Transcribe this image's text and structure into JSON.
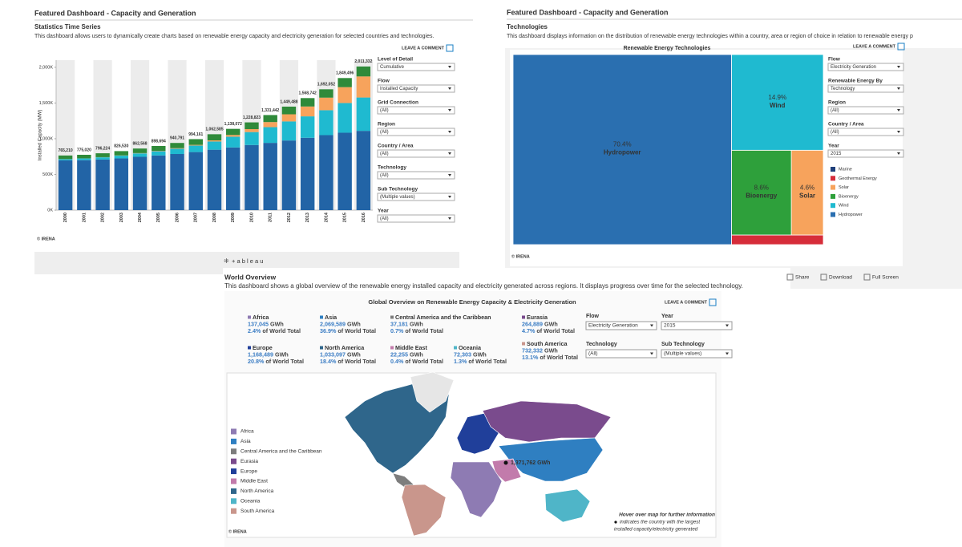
{
  "left_dashboard": {
    "header": "Featured Dashboard - Capacity and Generation",
    "title": "Statistics Time Series",
    "description": "This dashboard allows users to dynamically create charts based on renewable energy capacity and electricity generation for selected countries and technologies.",
    "comment": "LEAVE A COMMENT",
    "credit": "© IRENA",
    "brand": "+ a b l e a u",
    "filters": [
      {
        "label": "Level of Detail",
        "value": "Cumulative"
      },
      {
        "label": "Flow",
        "value": "Installed Capacity"
      },
      {
        "label": "Grid Connection",
        "value": "(All)"
      },
      {
        "label": "Region",
        "value": "(All)"
      },
      {
        "label": "Country / Area",
        "value": "(All)"
      },
      {
        "label": "Technology",
        "value": "(All)"
      },
      {
        "label": "Sub Technology",
        "value": "(Multiple values)"
      },
      {
        "label": "Year",
        "value": "(All)"
      }
    ]
  },
  "right_dashboard": {
    "header": "Featured Dashboard - Capacity and Generation",
    "title": "Technologies",
    "description": "This dashboard displays information on the distribution of renewable energy technologies within a country, area or region of choice in relation to renewable energy p",
    "comment": "LEAVE A COMMENT",
    "credit": "© IRENA",
    "filters": [
      {
        "label": "Flow",
        "value": "Electricity Generation"
      },
      {
        "label": "Renewable Energy By",
        "value": "Technology"
      },
      {
        "label": "Region",
        "value": "(All)"
      },
      {
        "label": "Country / Area",
        "value": "(All)"
      },
      {
        "label": "Year",
        "value": "2015"
      }
    ],
    "toolbar": [
      "Share",
      "Download",
      "Full Screen"
    ]
  },
  "bottom_dashboard": {
    "title": "World Overview",
    "description": "This dashboard shows a global overview of the renewable energy installed capacity and electricity generated across regions. It displays progress over time for the selected technology.",
    "map_title": "Global Overview on Renewable Energy Capacity & Electricity Generation",
    "comment": "LEAVE A COMMENT",
    "regions": [
      {
        "name": "Africa",
        "value": "137,045",
        "unit": "GWh",
        "share": "2.4%",
        "share_text": "of World Total"
      },
      {
        "name": "Asia",
        "value": "2,069,589",
        "unit": "GWh",
        "share": "36.9%",
        "share_text": "of World Total"
      },
      {
        "name": "Central America and the Caribbean",
        "value": "37,181",
        "unit": "GWh",
        "share": "0.7%",
        "share_text": "of World Total"
      },
      {
        "name": "Eurasia",
        "value": "264,889",
        "unit": "GWh",
        "share": "4.7%",
        "share_text": "of World Total"
      },
      {
        "name": "Europe",
        "value": "1,168,489",
        "unit": "GWh",
        "share": "20.8%",
        "share_text": "of World Total"
      },
      {
        "name": "North America",
        "value": "1,033,097",
        "unit": "GWh",
        "share": "18.4%",
        "share_text": "of World Total"
      },
      {
        "name": "Middle East",
        "value": "22,255",
        "unit": "GWh",
        "share": "0.4%",
        "share_text": "of World Total"
      },
      {
        "name": "Oceania",
        "value": "72,303",
        "unit": "GWh",
        "share": "1.3%",
        "share_text": "of World Total"
      },
      {
        "name": "South America",
        "value": "732,332",
        "unit": "GWh",
        "share": "13.1%",
        "share_text": "of World Total"
      }
    ],
    "filters": [
      {
        "label": "Flow",
        "value": "Electricity Generation"
      },
      {
        "label": "Year",
        "value": "2015"
      },
      {
        "label": "Technology",
        "value": "(All)"
      },
      {
        "label": "Sub Technology",
        "value": "(Multiple values)"
      }
    ],
    "legend": [
      {
        "name": "Africa",
        "color": "#8e7bb3"
      },
      {
        "name": "Asia",
        "color": "#2f7fc1"
      },
      {
        "name": "Central America and the Caribbean",
        "color": "#7d7d7d"
      },
      {
        "name": "Eurasia",
        "color": "#7a4b8d"
      },
      {
        "name": "Europe",
        "color": "#203f9a"
      },
      {
        "name": "Middle East",
        "color": "#c27bab"
      },
      {
        "name": "North America",
        "color": "#2f668b"
      },
      {
        "name": "Oceania",
        "color": "#4fb5c8"
      },
      {
        "name": "South America",
        "color": "#c9968c"
      }
    ],
    "marker_label": "1,371,762 GWh",
    "hint_title": "Hover over map for further information",
    "hint_text": [
      "indicates the country with the largest",
      "installed capacity/electricity generated"
    ],
    "credit": "© IRENA"
  },
  "chart_data": [
    {
      "type": "bar",
      "stacked": true,
      "y_label": "Installed Capacity (MW)",
      "categories": [
        "2000",
        "2001",
        "2002",
        "2003",
        "2004",
        "2005",
        "2006",
        "2007",
        "2008",
        "2009",
        "2010",
        "2011",
        "2012",
        "2013",
        "2014",
        "2015",
        "2016"
      ],
      "series": [
        {
          "color": "#2264a6",
          "values": [
            697000,
            700000,
            709000,
            724000,
            747000,
            766000,
            786000,
            813000,
            846000,
            878000,
            912000,
            942000,
            975000,
            1013000,
            1050000,
            1084000,
            1110000
          ]
        },
        {
          "color": "#1fbad0",
          "values": [
            17000,
            24000,
            31000,
            39000,
            48000,
            59000,
            74000,
            91000,
            115000,
            150000,
            181000,
            220000,
            267000,
            300000,
            349000,
            416000,
            467000
          ]
        },
        {
          "color": "#f7a35c",
          "values": [
            1000,
            1000,
            2000,
            3000,
            4000,
            6000,
            8000,
            10000,
            16000,
            24000,
            41000,
            71000,
            100000,
            138000,
            176000,
            222000,
            295000
          ]
        },
        {
          "color": "#2f8a3a",
          "values": [
            50210,
            50020,
            54224,
            60530,
            63568,
            67694,
            72791,
            80161,
            85585,
            86072,
            94823,
            98442,
            107488,
            117742,
            117052,
            127496,
            139332
          ]
        }
      ],
      "totals": [
        765210,
        775020,
        796224,
        826530,
        862568,
        898694,
        940791,
        994161,
        1062585,
        1138072,
        1228823,
        1331442,
        1449488,
        1568742,
        1692052,
        1849496,
        2011332
      ],
      "total_labels": [
        "765,210",
        "775,020",
        "796,224",
        "826,530",
        "862,568",
        "898,694",
        "940,791",
        "994,161",
        "1,062,585",
        "1,138,072",
        "1,228,823",
        "1,331,442",
        "1,449,488",
        "1,568,742",
        "1,692,052",
        "1,849,496",
        "2,011,332"
      ],
      "ylim": [
        0,
        2100000
      ],
      "yticks": [
        {
          "value": 0,
          "label": "0K"
        },
        {
          "value": 500000,
          "label": "500K"
        },
        {
          "value": 1000000,
          "label": "1,000K"
        },
        {
          "value": 1500000,
          "label": "1,500K"
        },
        {
          "value": 2000000,
          "label": "2,000K"
        }
      ],
      "grid": false
    },
    {
      "type": "treemap",
      "title": "Renewable Energy Technologies",
      "categories": [
        "Marine",
        "Geothermal Energy",
        "Solar",
        "Bioenergy",
        "Wind",
        "Hydropower"
      ],
      "colors": [
        "#1f3f7a",
        "#d62d3a",
        "#f7a35c",
        "#2ea03b",
        "#1fbad0",
        "#2a6fb0"
      ],
      "values": [
        0,
        1.5,
        4.6,
        8.6,
        14.9,
        70.4
      ],
      "value_labels": [
        null,
        null,
        "4.6%",
        "8.6%",
        "14.9%",
        "70.4%"
      ]
    }
  ]
}
